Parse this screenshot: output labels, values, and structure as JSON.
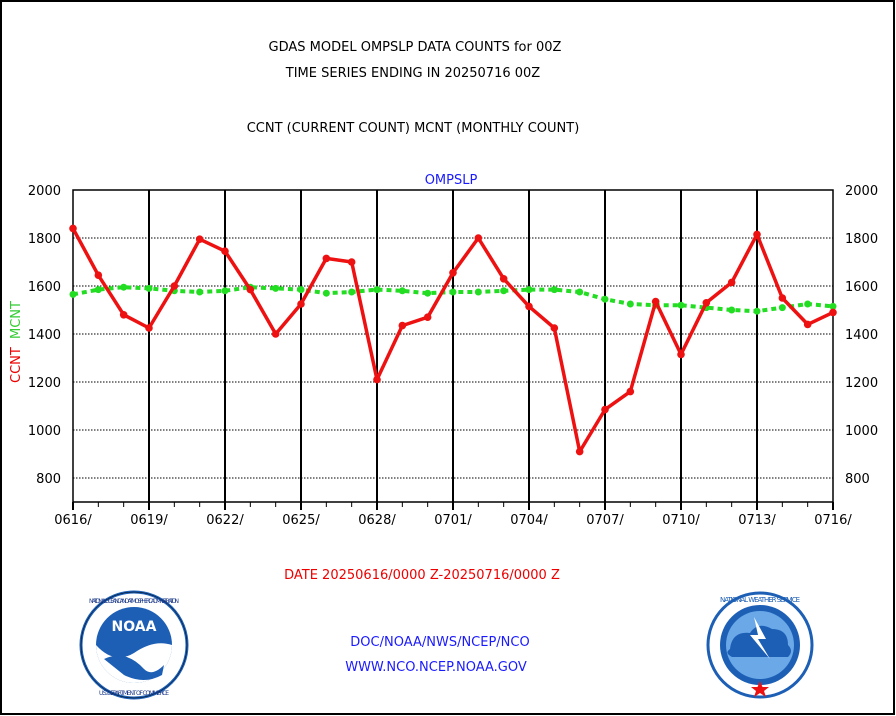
{
  "header": {
    "line1": "GDAS MODEL OMPSLP DATA COUNTS for 00Z",
    "line2": "TIME SERIES ENDING IN 20250716 00Z",
    "line3": "CCNT (CURRENT COUNT) MCNT (MONTHLY COUNT)"
  },
  "footer": {
    "date_range": "DATE 20250616/0000 Z-20250716/0000 Z",
    "org": "DOC/NOAA/NWS/NCEP/NCO",
    "url": "WWW.NCO.NCEP.NOAA.GOV"
  },
  "logos": {
    "left": {
      "name": "NOAA",
      "ring_text": "NATIONAL OCEANIC AND ATMOSPHERIC ADMINISTRATION",
      "bottom_text": "U.S. DEPARTMENT OF COMMERCE",
      "colors": {
        "ring": "#ffffff",
        "center": "#1d5fb5",
        "accent": "#ffffff"
      }
    },
    "right": {
      "name": "National Weather Service",
      "ring_text": "NATIONAL WEATHER SERVICE",
      "colors": {
        "ring": "#1d5fb5",
        "center": "#6aa8e8",
        "star": "#ee1111"
      }
    }
  },
  "chart_data": {
    "type": "line",
    "title": "OMPSLP",
    "ylabel_ccnt": "CCNT",
    "ylabel_mcnt": "MCNT",
    "ylim": [
      700,
      2000
    ],
    "yticks": [
      800,
      1000,
      1200,
      1400,
      1600,
      1800,
      2000
    ],
    "xticks": [
      "0616/",
      "0619/",
      "0622/",
      "0625/",
      "0628/",
      "0701/",
      "0704/",
      "0707/",
      "0710/",
      "0713/",
      "0716/"
    ],
    "x": [
      "0616",
      "0617",
      "0618",
      "0619",
      "0620",
      "0621",
      "0622",
      "0623",
      "0624",
      "0625",
      "0626",
      "0627",
      "0628",
      "0629",
      "0630",
      "0701",
      "0702",
      "0703",
      "0704",
      "0705",
      "0706",
      "0707",
      "0708",
      "0709",
      "0710",
      "0711",
      "0712",
      "0713",
      "0714",
      "0715",
      "0716"
    ],
    "grid": true,
    "colors": {
      "ccnt": "#ee1111",
      "mcnt": "#22dd22"
    },
    "series": [
      {
        "name": "CCNT",
        "values": [
          1840,
          1645,
          1480,
          1425,
          1600,
          1795,
          1745,
          1585,
          1400,
          1525,
          1715,
          1700,
          1210,
          1435,
          1470,
          1655,
          1800,
          1630,
          1515,
          1425,
          910,
          1085,
          1160,
          1535,
          1315,
          1530,
          1615,
          1815,
          1550,
          1440,
          1490
        ]
      },
      {
        "name": "MCNT",
        "values": [
          1565,
          1585,
          1595,
          1590,
          1580,
          1575,
          1580,
          1595,
          1590,
          1585,
          1570,
          1575,
          1585,
          1580,
          1570,
          1575,
          1575,
          1580,
          1585,
          1585,
          1575,
          1545,
          1525,
          1520,
          1520,
          1510,
          1500,
          1495,
          1510,
          1525,
          1515
        ]
      }
    ]
  }
}
